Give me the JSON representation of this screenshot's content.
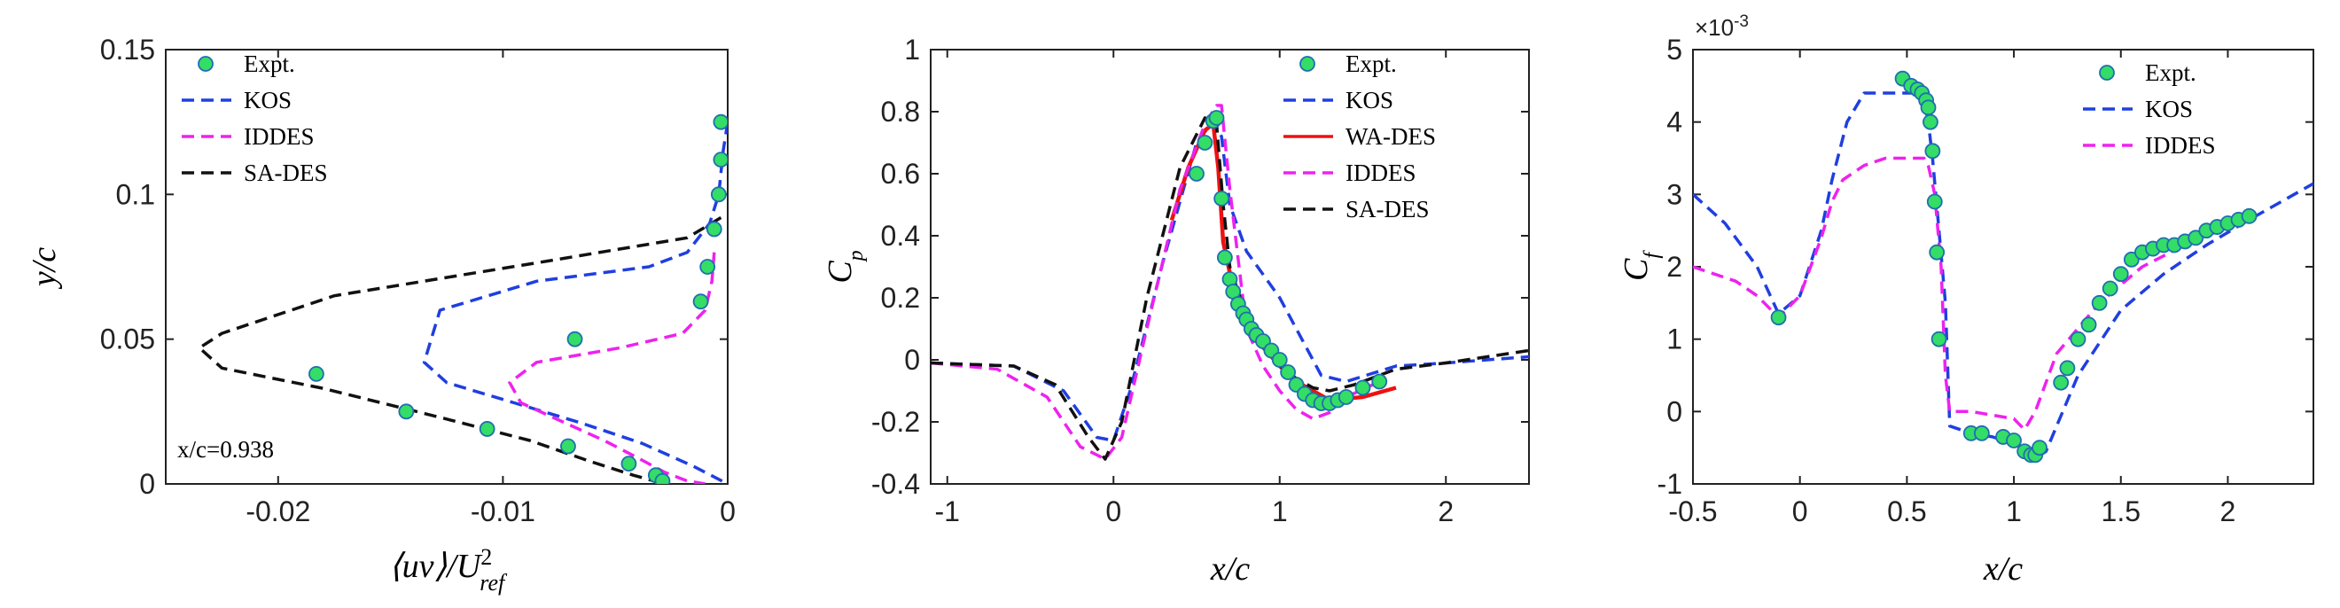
{
  "chart_data": [
    {
      "type": "line",
      "id": "uv",
      "xlim": [
        -0.025,
        0
      ],
      "ylim": [
        0,
        0.15
      ],
      "xticks": [
        "-0.02",
        "-0.01",
        "0"
      ],
      "xtick_values": [
        -0.02,
        -0.01,
        0
      ],
      "yticks": [
        "0",
        "0.05",
        "0.1",
        "0.15"
      ],
      "ytick_values": [
        0,
        0.05,
        0.1,
        0.15
      ],
      "xlabel": "⟨uv⟩/U",
      "xlabel_sup": "2",
      "xlabel_sub": "ref",
      "ylabel": "y/c",
      "annotation": "x/c=0.938",
      "legend": [
        "Expt.",
        "KOS",
        "IDDES",
        "SA-DES"
      ],
      "expt": {
        "name": "Expt.",
        "x": [
          -0.0003,
          -0.0003,
          -0.0004,
          -0.0006,
          -0.0009,
          -0.0012,
          -0.0068,
          -0.0183,
          -0.0143,
          -0.0107,
          -0.0071,
          -0.0044,
          -0.0032,
          -0.0029
        ],
        "y": [
          0.125,
          0.112,
          0.1,
          0.088,
          0.075,
          0.063,
          0.05,
          0.038,
          0.025,
          0.019,
          0.013,
          0.007,
          0.003,
          0.001
        ]
      },
      "series": [
        {
          "name": "KOS",
          "color": "#1f3fe0",
          "x": [
            0,
            -0.0002,
            -0.0004,
            -0.0008,
            -0.0018,
            -0.0035,
            -0.0085,
            -0.0128,
            -0.0135,
            -0.0125,
            -0.0095,
            -0.0065,
            -0.0038,
            -0.0015,
            0
          ],
          "y": [
            0.125,
            0.115,
            0.1,
            0.09,
            0.08,
            0.075,
            0.07,
            0.06,
            0.042,
            0.035,
            0.028,
            0.021,
            0.014,
            0.006,
            0
          ]
        },
        {
          "name": "IDDES",
          "color": "#ee22ee",
          "x": [
            -0.0006,
            -0.0007,
            -0.001,
            -0.002,
            -0.0048,
            -0.0085,
            -0.0097,
            -0.0092,
            -0.0075,
            -0.0055,
            -0.004,
            -0.0028,
            -0.0018,
            -0.001
          ],
          "y": [
            0.08,
            0.07,
            0.06,
            0.052,
            0.047,
            0.042,
            0.035,
            0.028,
            0.022,
            0.015,
            0.009,
            0.004,
            0.001,
            0
          ]
        },
        {
          "name": "SA-DES",
          "color": "#111111",
          "x": [
            -0.0003,
            -0.0018,
            -0.008,
            -0.0175,
            -0.0225,
            -0.0235,
            -0.0225,
            -0.018,
            -0.0128,
            -0.0088,
            -0.0062,
            -0.0042,
            -0.0028
          ],
          "y": [
            0.092,
            0.085,
            0.077,
            0.065,
            0.052,
            0.047,
            0.04,
            0.033,
            0.023,
            0.015,
            0.008,
            0.003,
            0
          ]
        }
      ]
    },
    {
      "type": "line",
      "id": "cp",
      "xlim": [
        -1.1,
        2.5
      ],
      "ylim": [
        -0.4,
        1
      ],
      "xticks": [
        "-1",
        "0",
        "1",
        "2"
      ],
      "xtick_values": [
        -1,
        0,
        1,
        2
      ],
      "yticks": [
        "-0.4",
        "-0.2",
        "0",
        "0.2",
        "0.4",
        "0.6",
        "0.8",
        "1"
      ],
      "ytick_values": [
        -0.4,
        -0.2,
        0,
        0.2,
        0.4,
        0.6,
        0.8,
        1
      ],
      "xlabel": "x/c",
      "ylabel": "C",
      "ylabel_sub": "p",
      "legend": [
        "Expt.",
        "KOS",
        "WA-DES",
        "IDDES",
        "SA-DES"
      ],
      "expt": {
        "name": "Expt.",
        "x": [
          0.5,
          0.55,
          0.6,
          0.62,
          0.65,
          0.67,
          0.7,
          0.72,
          0.75,
          0.78,
          0.8,
          0.83,
          0.86,
          0.9,
          0.95,
          1.0,
          1.05,
          1.1,
          1.15,
          1.2,
          1.25,
          1.3,
          1.35,
          1.4,
          1.5,
          1.6
        ],
        "y": [
          0.6,
          0.7,
          0.77,
          0.78,
          0.52,
          0.33,
          0.26,
          0.22,
          0.18,
          0.15,
          0.13,
          0.1,
          0.08,
          0.06,
          0.03,
          0.0,
          -0.04,
          -0.08,
          -0.11,
          -0.13,
          -0.14,
          -0.14,
          -0.13,
          -0.12,
          -0.09,
          -0.07
        ]
      },
      "series": [
        {
          "name": "KOS",
          "color": "#1f3fe0",
          "x": [
            -1.1,
            -0.6,
            -0.3,
            -0.1,
            0.0,
            0.1,
            0.3,
            0.5,
            0.6,
            0.65,
            0.7,
            0.8,
            1.0,
            1.1,
            1.25,
            1.4,
            1.7,
            2.0,
            2.5
          ],
          "y": [
            -0.01,
            -0.02,
            -0.1,
            -0.25,
            -0.26,
            -0.1,
            0.32,
            0.7,
            0.77,
            0.72,
            0.5,
            0.35,
            0.2,
            0.1,
            -0.05,
            -0.07,
            -0.02,
            -0.01,
            0.01
          ]
        },
        {
          "name": "WA-DES",
          "color": "#ee1111",
          "x": [
            0.35,
            0.45,
            0.55,
            0.6,
            0.63,
            0.66,
            0.7,
            0.8,
            0.9,
            1.0,
            1.1,
            1.2,
            1.3,
            1.5,
            1.7
          ],
          "y": [
            0.45,
            0.62,
            0.74,
            0.76,
            0.62,
            0.38,
            0.28,
            0.12,
            0.04,
            -0.02,
            -0.07,
            -0.1,
            -0.13,
            -0.12,
            -0.09
          ]
        },
        {
          "name": "IDDES",
          "color": "#ee22ee",
          "x": [
            -1.1,
            -0.7,
            -0.4,
            -0.2,
            -0.05,
            0.05,
            0.2,
            0.4,
            0.55,
            0.62,
            0.65,
            0.7,
            0.8,
            0.9,
            1.0,
            1.1,
            1.2,
            1.3,
            1.4,
            1.6
          ],
          "y": [
            -0.01,
            -0.03,
            -0.12,
            -0.28,
            -0.32,
            -0.25,
            0.1,
            0.55,
            0.76,
            0.82,
            0.82,
            0.55,
            0.1,
            -0.02,
            -0.1,
            -0.16,
            -0.19,
            -0.17,
            -0.12,
            -0.07
          ]
        },
        {
          "name": "SA-DES",
          "color": "#111111",
          "x": [
            -1.1,
            -0.6,
            -0.35,
            -0.15,
            -0.05,
            0.05,
            0.2,
            0.4,
            0.55,
            0.62,
            0.66,
            0.7,
            0.8,
            0.9,
            1.0,
            1.1,
            1.2,
            1.3,
            1.45,
            1.7,
            2.0,
            2.5
          ],
          "y": [
            -0.01,
            -0.02,
            -0.08,
            -0.25,
            -0.32,
            -0.2,
            0.2,
            0.62,
            0.78,
            0.76,
            0.5,
            0.3,
            0.14,
            0.05,
            -0.02,
            -0.06,
            -0.09,
            -0.1,
            -0.08,
            -0.03,
            -0.01,
            0.03
          ]
        }
      ]
    },
    {
      "type": "line",
      "id": "cf",
      "xlim": [
        -0.5,
        2.4
      ],
      "ylim": [
        -1,
        5
      ],
      "xticks": [
        "-0.5",
        "0",
        "0.5",
        "1",
        "1.5",
        "2"
      ],
      "xtick_values": [
        -0.5,
        0,
        0.5,
        1,
        1.5,
        2
      ],
      "yticks": [
        "-1",
        "0",
        "1",
        "2",
        "3",
        "4",
        "5"
      ],
      "ytick_values": [
        -1,
        0,
        1,
        2,
        3,
        4,
        5
      ],
      "exponent_label": "×10",
      "exponent_power": "-3",
      "xlabel": "x/c",
      "ylabel": "C",
      "ylabel_sub": "f",
      "legend": [
        "Expt.",
        "KOS",
        "IDDES"
      ],
      "expt": {
        "name": "Expt.",
        "x": [
          -0.1,
          0.48,
          0.52,
          0.55,
          0.57,
          0.59,
          0.6,
          0.61,
          0.62,
          0.63,
          0.64,
          0.65,
          0.8,
          0.85,
          0.95,
          1.0,
          1.05,
          1.08,
          1.1,
          1.12,
          1.22,
          1.25,
          1.3,
          1.35,
          1.4,
          1.45,
          1.5,
          1.55,
          1.6,
          1.65,
          1.7,
          1.75,
          1.8,
          1.85,
          1.9,
          1.95,
          2.0,
          2.05,
          2.1
        ],
        "y": [
          1.3,
          4.6,
          4.5,
          4.45,
          4.4,
          4.3,
          4.2,
          4.0,
          3.6,
          2.9,
          2.2,
          1.0,
          -0.3,
          -0.3,
          -0.35,
          -0.4,
          -0.55,
          -0.6,
          -0.6,
          -0.5,
          0.4,
          0.6,
          1.0,
          1.2,
          1.5,
          1.7,
          1.9,
          2.1,
          2.2,
          2.25,
          2.3,
          2.3,
          2.35,
          2.4,
          2.5,
          2.55,
          2.6,
          2.65,
          2.7
        ]
      },
      "series": [
        {
          "name": "KOS",
          "color": "#1f3fe0",
          "x": [
            -0.5,
            -0.35,
            -0.2,
            -0.1,
            0.0,
            0.1,
            0.15,
            0.22,
            0.3,
            0.4,
            0.5,
            0.55,
            0.58,
            0.6,
            0.62,
            0.65,
            0.68,
            0.7,
            0.8,
            0.9,
            1.0,
            1.05,
            1.1,
            1.15,
            1.2,
            1.3,
            1.5,
            1.7,
            1.9,
            2.1,
            2.4
          ],
          "y": [
            3.0,
            2.6,
            2.0,
            1.35,
            1.6,
            2.5,
            3.2,
            4.0,
            4.4,
            4.4,
            4.4,
            4.4,
            4.3,
            4.0,
            3.5,
            2.5,
            1.5,
            -0.2,
            -0.3,
            -0.35,
            -0.45,
            -0.55,
            -0.65,
            -0.55,
            -0.2,
            0.5,
            1.4,
            1.9,
            2.3,
            2.65,
            3.15
          ]
        },
        {
          "name": "IDDES",
          "color": "#ee22ee",
          "x": [
            -0.5,
            -0.3,
            -0.2,
            -0.1,
            0.0,
            0.1,
            0.15,
            0.2,
            0.3,
            0.4,
            0.5,
            0.55,
            0.58,
            0.6,
            0.63,
            0.66,
            0.68,
            0.7,
            0.8,
            0.9,
            1.0,
            1.05,
            1.1,
            1.2,
            1.4,
            1.6,
            1.8,
            2.0,
            2.1
          ],
          "y": [
            2.0,
            1.8,
            1.6,
            1.3,
            1.6,
            2.4,
            2.9,
            3.2,
            3.4,
            3.5,
            3.5,
            3.5,
            3.5,
            3.4,
            3.0,
            2.0,
            0.5,
            0.0,
            0.0,
            -0.05,
            -0.1,
            -0.25,
            0.0,
            0.8,
            1.5,
            2.0,
            2.3,
            2.55,
            2.65
          ]
        }
      ]
    }
  ]
}
